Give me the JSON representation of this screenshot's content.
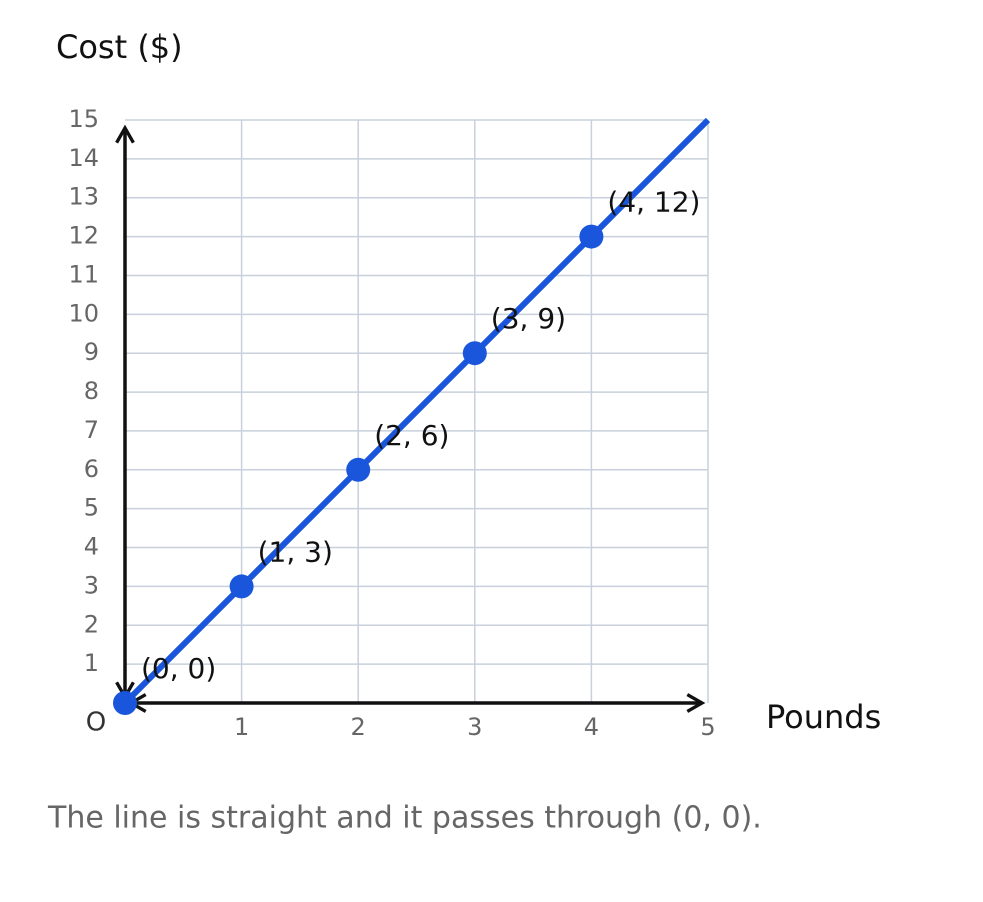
{
  "chart_data": {
    "type": "line",
    "ylabel": "Cost ($)",
    "xlabel": "Pounds",
    "origin_label": "O",
    "note": "The line is straight and it passes through (0, 0).",
    "line": {
      "x": [
        0,
        5
      ],
      "values": [
        0,
        15
      ],
      "color": "#1a56db"
    },
    "points": {
      "x": [
        0,
        1,
        2,
        3,
        4
      ],
      "values": [
        0,
        3,
        6,
        9,
        12
      ],
      "color": "#1a56db",
      "value_labels": [
        "(0, 0)",
        "(1, 3)",
        "(2, 6)",
        "(3, 9)",
        "(4, 12)"
      ]
    },
    "xlim": [
      0,
      5
    ],
    "ylim": [
      0,
      15
    ],
    "xticks": [
      1,
      2,
      3,
      4,
      5
    ],
    "yticks": [
      1,
      2,
      3,
      4,
      5,
      6,
      7,
      8,
      9,
      10,
      11,
      12,
      13,
      14,
      15
    ],
    "grid": true
  }
}
